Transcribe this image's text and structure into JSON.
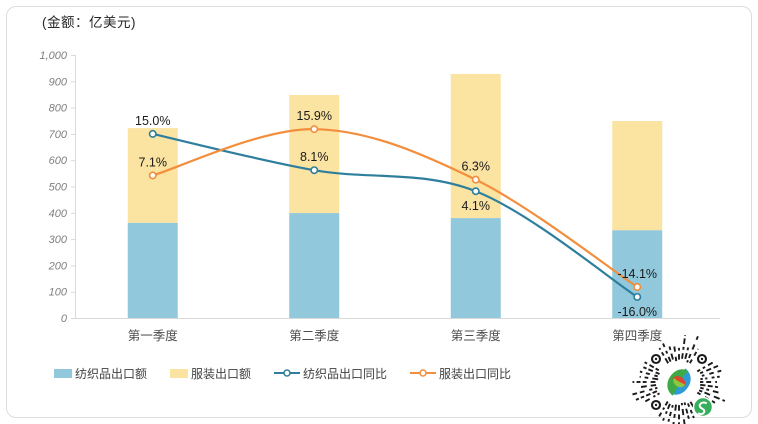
{
  "title": "(金额：亿美元)",
  "colors": {
    "textile_bar": "#92C8DC",
    "clothing_bar": "#FBE3A2",
    "textile_line": "#2E7F9E",
    "clothing_line": "#F28E3C",
    "axis": "#D9D9D9",
    "tick_label": "#7F7F7F",
    "category_label": "#4D4D4D",
    "data_label": "#1A1A1A"
  },
  "chart_data": {
    "type": "bar",
    "subtype": "stacked-bars-with-lines",
    "title": "(金额：亿美元)",
    "categories": [
      "第一季度",
      "第二季度",
      "第三季度",
      "第四季度"
    ],
    "bar_series": [
      {
        "name": "纺织品出口额",
        "values": [
          362,
          399,
          380,
          334
        ],
        "color_key": "textile_bar"
      },
      {
        "name": "服装出口额",
        "values": [
          360,
          449,
          548,
          415
        ],
        "color_key": "clothing_bar"
      }
    ],
    "line_series": [
      {
        "name": "纺织品出口同比",
        "values": [
          15.0,
          8.1,
          4.1,
          -16.0
        ],
        "labels": [
          "15.0%",
          "8.1%",
          "4.1%",
          "-16.0%"
        ],
        "label_positions": [
          "above",
          "above",
          "below",
          "below"
        ],
        "color_key": "textile_line"
      },
      {
        "name": "服装出口同比",
        "values": [
          7.1,
          15.9,
          6.3,
          -14.1
        ],
        "labels": [
          "7.1%",
          "15.9%",
          "6.3%",
          "-14.1%"
        ],
        "label_positions": [
          "above",
          "above",
          "above",
          "above"
        ],
        "color_key": "clothing_line"
      }
    ],
    "y_axis": {
      "min": 0,
      "max": 1000,
      "step": 100,
      "tick_labels": [
        "0",
        "100",
        "200",
        "300",
        "400",
        "500",
        "600",
        "700",
        "800",
        "900",
        "1,000"
      ]
    },
    "y2_axis": {
      "min": -20,
      "max": 30,
      "visible": false
    },
    "grid": false,
    "legend_position": "bottom"
  }
}
